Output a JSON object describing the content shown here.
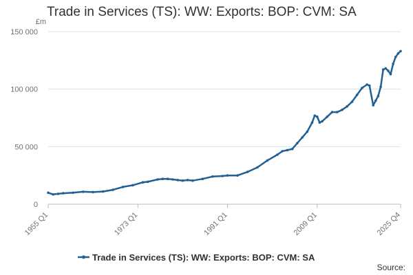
{
  "chart_data": {
    "type": "line",
    "title": "Trade in Services (TS): WW: Exports: BOP: CVM: SA",
    "ylabel_unit": "£m",
    "xlabel": "",
    "ylim": [
      0,
      150000
    ],
    "y_ticks": [
      0,
      50000,
      100000,
      150000
    ],
    "y_tick_labels": [
      "0",
      "50 000",
      "100 000",
      "150 000"
    ],
    "x_ticks": [
      1955,
      1973,
      1991,
      2009,
      2025.75
    ],
    "x_tick_labels": [
      "1955 Q1",
      "1973 Q1",
      "1991 Q1",
      "2009 Q1",
      "2025 Q4"
    ],
    "grid": true,
    "legend_position": "bottom",
    "source_label": "Source:",
    "series": [
      {
        "name": "Trade in Services (TS): WW: Exports: BOP: CVM: SA",
        "color": "#206095",
        "x": [
          1955,
          1956,
          1957,
          1958,
          1960,
          1962,
          1964,
          1966,
          1968,
          1970,
          1972,
          1974,
          1975,
          1977,
          1978,
          1979,
          1980,
          1981,
          1982,
          1983,
          1984,
          1986,
          1988,
          1990,
          1991,
          1993,
          1995,
          1997,
          1999,
          2001,
          2002,
          2003,
          2004,
          2005,
          2006,
          2007,
          2008,
          2008.5,
          2009,
          2009.5,
          2010,
          2011,
          2012,
          2013,
          2014,
          2015,
          2016,
          2017,
          2018,
          2019,
          2019.5,
          2020.25,
          2020.75,
          2021.25,
          2021.75,
          2022.25,
          2022.75,
          2023.25,
          2023.75,
          2024.25,
          2024.75,
          2025.25,
          2025.75
        ],
        "values": [
          10000,
          8500,
          9000,
          9500,
          10000,
          10800,
          10500,
          11000,
          12500,
          15000,
          16500,
          19000,
          19500,
          21500,
          22000,
          22000,
          21500,
          21000,
          20500,
          21000,
          20500,
          22000,
          24000,
          24500,
          25000,
          25000,
          28000,
          32000,
          38000,
          43000,
          46000,
          47000,
          48000,
          53000,
          58000,
          63000,
          71000,
          77000,
          76000,
          71000,
          72000,
          76000,
          80000,
          80000,
          82000,
          85000,
          89000,
          95000,
          101000,
          104000,
          103000,
          86000,
          90000,
          94000,
          102000,
          117000,
          118000,
          116000,
          113000,
          122000,
          128000,
          131000,
          133000
        ]
      }
    ]
  }
}
